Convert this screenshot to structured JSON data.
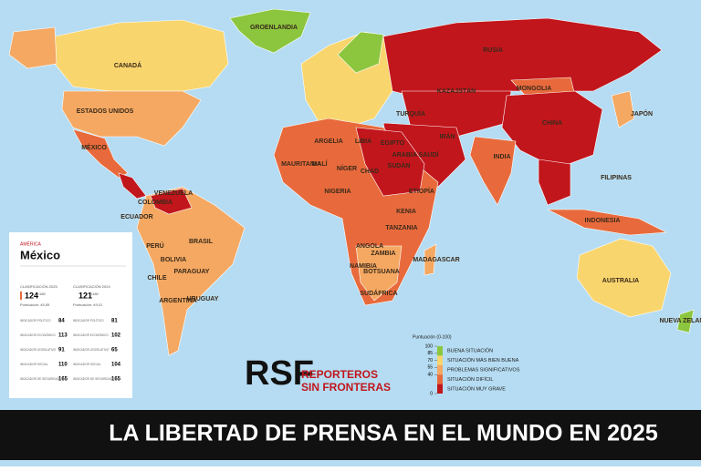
{
  "map": {
    "labels": [
      "CANADÁ",
      "ESTADOS UNIDOS",
      "MÉXICO",
      "BRASIL",
      "ARGENTINA",
      "PERÚ",
      "BOLIVIA",
      "COLOMBIA",
      "VENEZUELA",
      "ECUADOR",
      "CHILE",
      "PARAGUAY",
      "URUGUAY",
      "RUSIA",
      "KAZAJSTÁN",
      "MONGOLIA",
      "CHINA",
      "INDIA",
      "JAPÓN",
      "ARGELIA",
      "LIBIA",
      "EGIPTO",
      "MALÍ",
      "NÍGER",
      "CHAD",
      "SUDÁN",
      "ETIOPÍA",
      "NIGERIA",
      "KENIA",
      "TANZANIA",
      "ANGOLA",
      "ZAMBIA",
      "NAMIBIA",
      "BOTSUANA",
      "SUDÁFRICA",
      "MADAGASCAR",
      "IRÁN",
      "ARABIA SAUDÍ",
      "TURQUÍA",
      "INDONESIA",
      "FILIPINAS",
      "AUSTRALIA",
      "NUEVA ZELANDA",
      "GROENLANDIA",
      "MAURITANIA"
    ],
    "legend": {
      "title": "Puntuación (0-100)",
      "ticks": [
        100,
        85,
        70,
        55,
        40,
        0
      ],
      "items": [
        {
          "label": "BUENA SITUACIÓN",
          "color": "#8cc63f"
        },
        {
          "label": "SITUACIÓN MÁS BIEN BUENA",
          "color": "#f9d56e"
        },
        {
          "label": "PROBLEMAS SIGNIFICATIVOS",
          "color": "#f4a862"
        },
        {
          "label": "SITUACIÓN DIFÍCIL",
          "color": "#e86a3c"
        },
        {
          "label": "SITUACIÓN MUY GRAVE",
          "color": "#c1161c"
        }
      ]
    }
  },
  "card": {
    "region": "AMÉRICA",
    "country": "México",
    "rank2025": {
      "label": "CLASIFICACIÓN 2025",
      "rank": "124",
      "total": "/180",
      "score": "Puntuación: 45,55"
    },
    "rank2024": {
      "label": "CLASIFICACIÓN 2024",
      "rank": "121",
      "total": "/180",
      "score": "Puntuación: 49,01"
    },
    "indicators": [
      {
        "name": "INDICADOR POLÍTICO",
        "v2025": "84",
        "v2024": "81"
      },
      {
        "name": "INDICADOR ECONÓMICO",
        "v2025": "113",
        "v2024": "102"
      },
      {
        "name": "INDICADOR LEGISLATIVO",
        "v2025": "91",
        "v2024": "65"
      },
      {
        "name": "INDICADOR SOCIAL",
        "v2025": "110",
        "v2024": "104"
      },
      {
        "name": "INDICADOR DE SEGURIDAD",
        "v2025": "165",
        "v2024": "165"
      }
    ]
  },
  "logo": {
    "mark": "RSF",
    "line1": "REPORTEROS",
    "line2": "SIN FRONTERAS"
  },
  "banner": {
    "title": "LA LIBERTAD DE PRENSA EN EL MUNDO EN 2025"
  }
}
